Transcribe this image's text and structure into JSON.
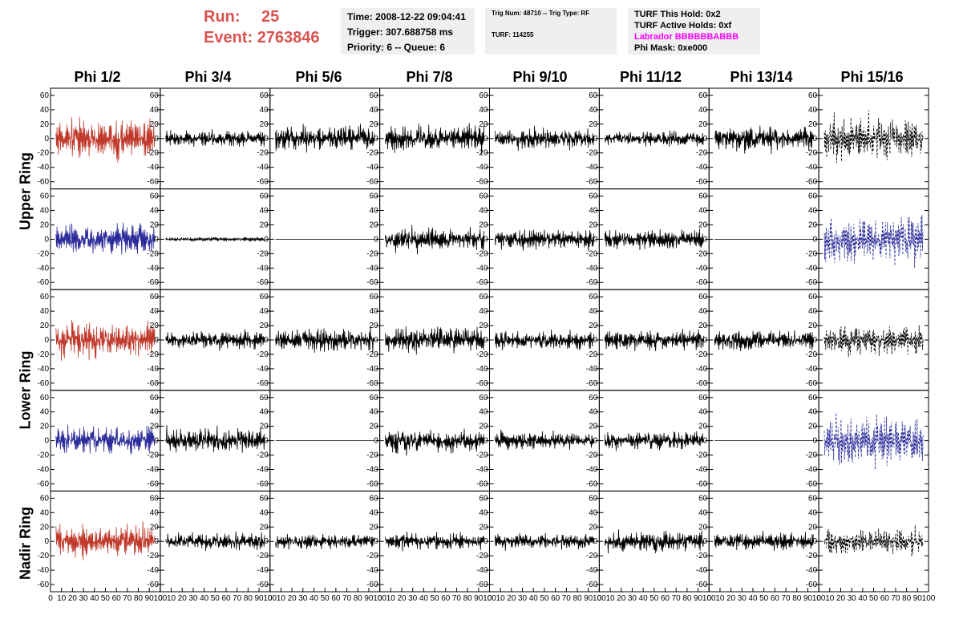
{
  "header": {
    "run_label": "Run:",
    "run_value": "25",
    "event_label": "Event:",
    "event_value": "2763846",
    "time": "Time: 2008-12-22 09:04:41",
    "trigger": "Trigger: 307.688758 ms",
    "priority": "Priority: 6 -- Queue: 6",
    "trig_num": "Trig Num: 48710 -- Trig Type: RF",
    "turf": "TURF: 114255",
    "turf_this_hold": "TURF This Hold: 0x2",
    "turf_active_holds": "TURF Active Holds: 0xf",
    "labrador": "Labrador BBBBBBABBB",
    "phi_mask": "Phi Mask: 0xe000"
  },
  "columns": [
    "Phi 1/2",
    "Phi 3/4",
    "Phi 5/6",
    "Phi 7/8",
    "Phi 9/10",
    "Phi 11/12",
    "Phi 13/14",
    "Phi 15/16"
  ],
  "ring_labels": [
    "Upper Ring",
    "Lower Ring",
    "Nadir Ring"
  ],
  "colors": {
    "red": "#c0392b",
    "blue": "#2a2a9a",
    "black": "#000000",
    "header_red": "#d9534f",
    "magenta": "#ff00ff"
  },
  "chart_data": {
    "type": "line",
    "xlim": [
      0,
      100
    ],
    "ylim": [
      -70,
      70
    ],
    "y_ticks": [
      -60,
      -40,
      -20,
      0,
      20,
      40,
      60
    ],
    "x_ticks": [
      0,
      10,
      20,
      30,
      40,
      50,
      60,
      70,
      80,
      90,
      100
    ],
    "grid": false,
    "rows": 5,
    "cols": 8,
    "panels": [
      {
        "row": 0,
        "col": 0,
        "color": "red",
        "amp": 26,
        "style": "solid"
      },
      {
        "row": 0,
        "col": 1,
        "color": "black",
        "amp": 11,
        "style": "solid"
      },
      {
        "row": 0,
        "col": 2,
        "color": "black",
        "amp": 18,
        "style": "solid"
      },
      {
        "row": 0,
        "col": 3,
        "color": "black",
        "amp": 18,
        "style": "solid"
      },
      {
        "row": 0,
        "col": 4,
        "color": "black",
        "amp": 14,
        "style": "solid"
      },
      {
        "row": 0,
        "col": 5,
        "color": "black",
        "amp": 10,
        "style": "solid"
      },
      {
        "row": 0,
        "col": 6,
        "color": "black",
        "amp": 18,
        "style": "solid"
      },
      {
        "row": 0,
        "col": 7,
        "color": "black",
        "amp": 30,
        "style": "dashed"
      },
      {
        "row": 1,
        "col": 0,
        "color": "blue",
        "amp": 20,
        "style": "solid"
      },
      {
        "row": 1,
        "col": 1,
        "color": "black",
        "amp": 3,
        "style": "solid"
      },
      {
        "row": 1,
        "col": 2,
        "color": "black",
        "amp": 0,
        "style": "solid"
      },
      {
        "row": 1,
        "col": 3,
        "color": "black",
        "amp": 16,
        "style": "solid"
      },
      {
        "row": 1,
        "col": 4,
        "color": "black",
        "amp": 14,
        "style": "solid"
      },
      {
        "row": 1,
        "col": 5,
        "color": "black",
        "amp": 14,
        "style": "solid"
      },
      {
        "row": 1,
        "col": 6,
        "color": "black",
        "amp": 0,
        "style": "solid"
      },
      {
        "row": 1,
        "col": 7,
        "color": "blue",
        "amp": 32,
        "style": "dashed"
      },
      {
        "row": 2,
        "col": 0,
        "color": "red",
        "amp": 24,
        "style": "solid"
      },
      {
        "row": 2,
        "col": 1,
        "color": "black",
        "amp": 13,
        "style": "solid"
      },
      {
        "row": 2,
        "col": 2,
        "color": "black",
        "amp": 16,
        "style": "solid"
      },
      {
        "row": 2,
        "col": 3,
        "color": "black",
        "amp": 18,
        "style": "solid"
      },
      {
        "row": 2,
        "col": 4,
        "color": "black",
        "amp": 14,
        "style": "solid"
      },
      {
        "row": 2,
        "col": 5,
        "color": "black",
        "amp": 14,
        "style": "solid"
      },
      {
        "row": 2,
        "col": 6,
        "color": "black",
        "amp": 14,
        "style": "solid"
      },
      {
        "row": 2,
        "col": 7,
        "color": "black",
        "amp": 20,
        "style": "dashed"
      },
      {
        "row": 3,
        "col": 0,
        "color": "blue",
        "amp": 18,
        "style": "solid"
      },
      {
        "row": 3,
        "col": 1,
        "color": "black",
        "amp": 16,
        "style": "solid"
      },
      {
        "row": 3,
        "col": 2,
        "color": "black",
        "amp": 0,
        "style": "solid"
      },
      {
        "row": 3,
        "col": 3,
        "color": "black",
        "amp": 16,
        "style": "solid"
      },
      {
        "row": 3,
        "col": 4,
        "color": "black",
        "amp": 12,
        "style": "solid"
      },
      {
        "row": 3,
        "col": 5,
        "color": "black",
        "amp": 12,
        "style": "solid"
      },
      {
        "row": 3,
        "col": 6,
        "color": "black",
        "amp": 0,
        "style": "solid"
      },
      {
        "row": 3,
        "col": 7,
        "color": "blue",
        "amp": 34,
        "style": "dashed"
      },
      {
        "row": 4,
        "col": 0,
        "color": "red",
        "amp": 22,
        "style": "solid"
      },
      {
        "row": 4,
        "col": 1,
        "color": "black",
        "amp": 12,
        "style": "solid"
      },
      {
        "row": 4,
        "col": 2,
        "color": "black",
        "amp": 11,
        "style": "solid"
      },
      {
        "row": 4,
        "col": 3,
        "color": "black",
        "amp": 11,
        "style": "solid"
      },
      {
        "row": 4,
        "col": 4,
        "color": "black",
        "amp": 11,
        "style": "solid"
      },
      {
        "row": 4,
        "col": 5,
        "color": "black",
        "amp": 14,
        "style": "solid"
      },
      {
        "row": 4,
        "col": 6,
        "color": "black",
        "amp": 12,
        "style": "solid"
      },
      {
        "row": 4,
        "col": 7,
        "color": "black",
        "amp": 18,
        "style": "dashed"
      }
    ]
  }
}
